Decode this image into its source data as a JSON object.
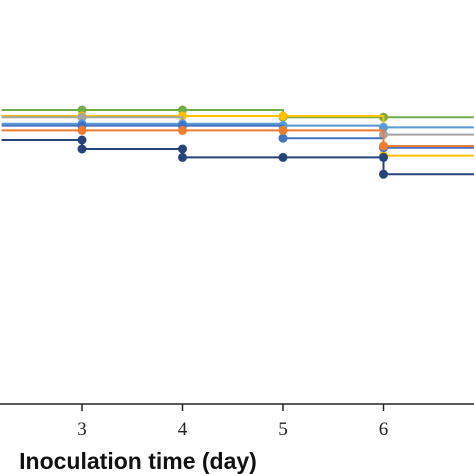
{
  "chart_data": {
    "type": "line",
    "step": true,
    "xlabel": "Inoculation time (day)",
    "x_ticks": [
      3,
      4,
      5,
      6
    ],
    "xlim": [
      2.2,
      6.9
    ],
    "ylim": [
      0,
      100
    ],
    "grid": false,
    "series": [
      {
        "color": "#70ad47",
        "points": [
          [
            2.2,
            98
          ],
          [
            3,
            98
          ],
          [
            4,
            98
          ],
          [
            5,
            95.6
          ],
          [
            6,
            95.6
          ],
          [
            6.9,
            95.6
          ]
        ]
      },
      {
        "color": "#ffc000",
        "points": [
          [
            2.2,
            96
          ],
          [
            3,
            96
          ],
          [
            4,
            96
          ],
          [
            5,
            96
          ],
          [
            6,
            82.8
          ],
          [
            6.9,
            82.8
          ]
        ]
      },
      {
        "color": "#a5a5a5",
        "points": [
          [
            2.2,
            95.6
          ],
          [
            3,
            95.6
          ],
          [
            4,
            92.8
          ],
          [
            5,
            92.8
          ],
          [
            6,
            89.8
          ],
          [
            6.9,
            89.8
          ]
        ]
      },
      {
        "color": "#5b9bd5",
        "points": [
          [
            2.2,
            93.4
          ],
          [
            3,
            93.4
          ],
          [
            4,
            93.4
          ],
          [
            5,
            92.8
          ],
          [
            6,
            92.2
          ],
          [
            6.9,
            92.2
          ]
        ]
      },
      {
        "color": "#4472c4",
        "points": [
          [
            2.2,
            92.8
          ],
          [
            3,
            92.8
          ],
          [
            4,
            92.8
          ],
          [
            5,
            88.6
          ],
          [
            6,
            85.4
          ],
          [
            6.9,
            85.4
          ]
        ]
      },
      {
        "color": "#ed7d31",
        "points": [
          [
            2.2,
            91.2
          ],
          [
            3,
            91.2
          ],
          [
            4,
            91.2
          ],
          [
            5,
            91.2
          ],
          [
            6,
            86
          ],
          [
            6.9,
            86
          ]
        ]
      },
      {
        "color": "#264478",
        "points": [
          [
            2.2,
            88
          ],
          [
            3,
            88
          ],
          [
            3,
            85
          ],
          [
            4,
            85
          ],
          [
            4,
            82.2
          ],
          [
            5,
            82.2
          ],
          [
            6,
            82.2
          ],
          [
            6,
            76.6
          ],
          [
            6.9,
            76.6
          ]
        ]
      }
    ]
  }
}
